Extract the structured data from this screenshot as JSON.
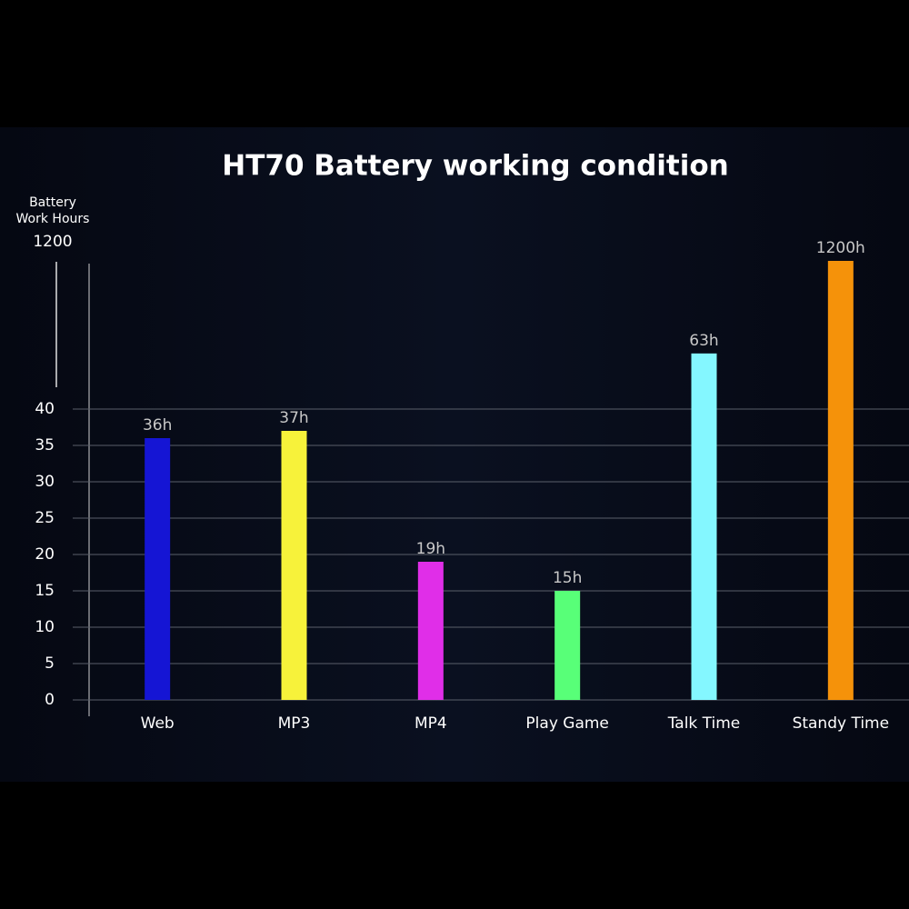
{
  "chart_data": {
    "type": "bar",
    "title": "HT70 Battery working condition",
    "y_label": [
      "Battery",
      "Work Hours"
    ],
    "categories": [
      "Web",
      "MP3",
      "MP4",
      "Play Game",
      "Talk Time",
      "Standy Time"
    ],
    "values": [
      36,
      37,
      19,
      15,
      63,
      1200
    ],
    "value_labels": [
      "36h",
      "37h",
      "19h",
      "15h",
      "63h",
      "1200h"
    ],
    "colors": [
      "#1515d4",
      "#f7f23a",
      "#e02ee8",
      "#58ff78",
      "#84f7ff",
      "#f5920a"
    ],
    "ylim": [
      0,
      1200
    ],
    "yticks": [
      0,
      5,
      10,
      15,
      20,
      25,
      30,
      35,
      40,
      1200
    ],
    "axis_break": true,
    "grid": true
  }
}
